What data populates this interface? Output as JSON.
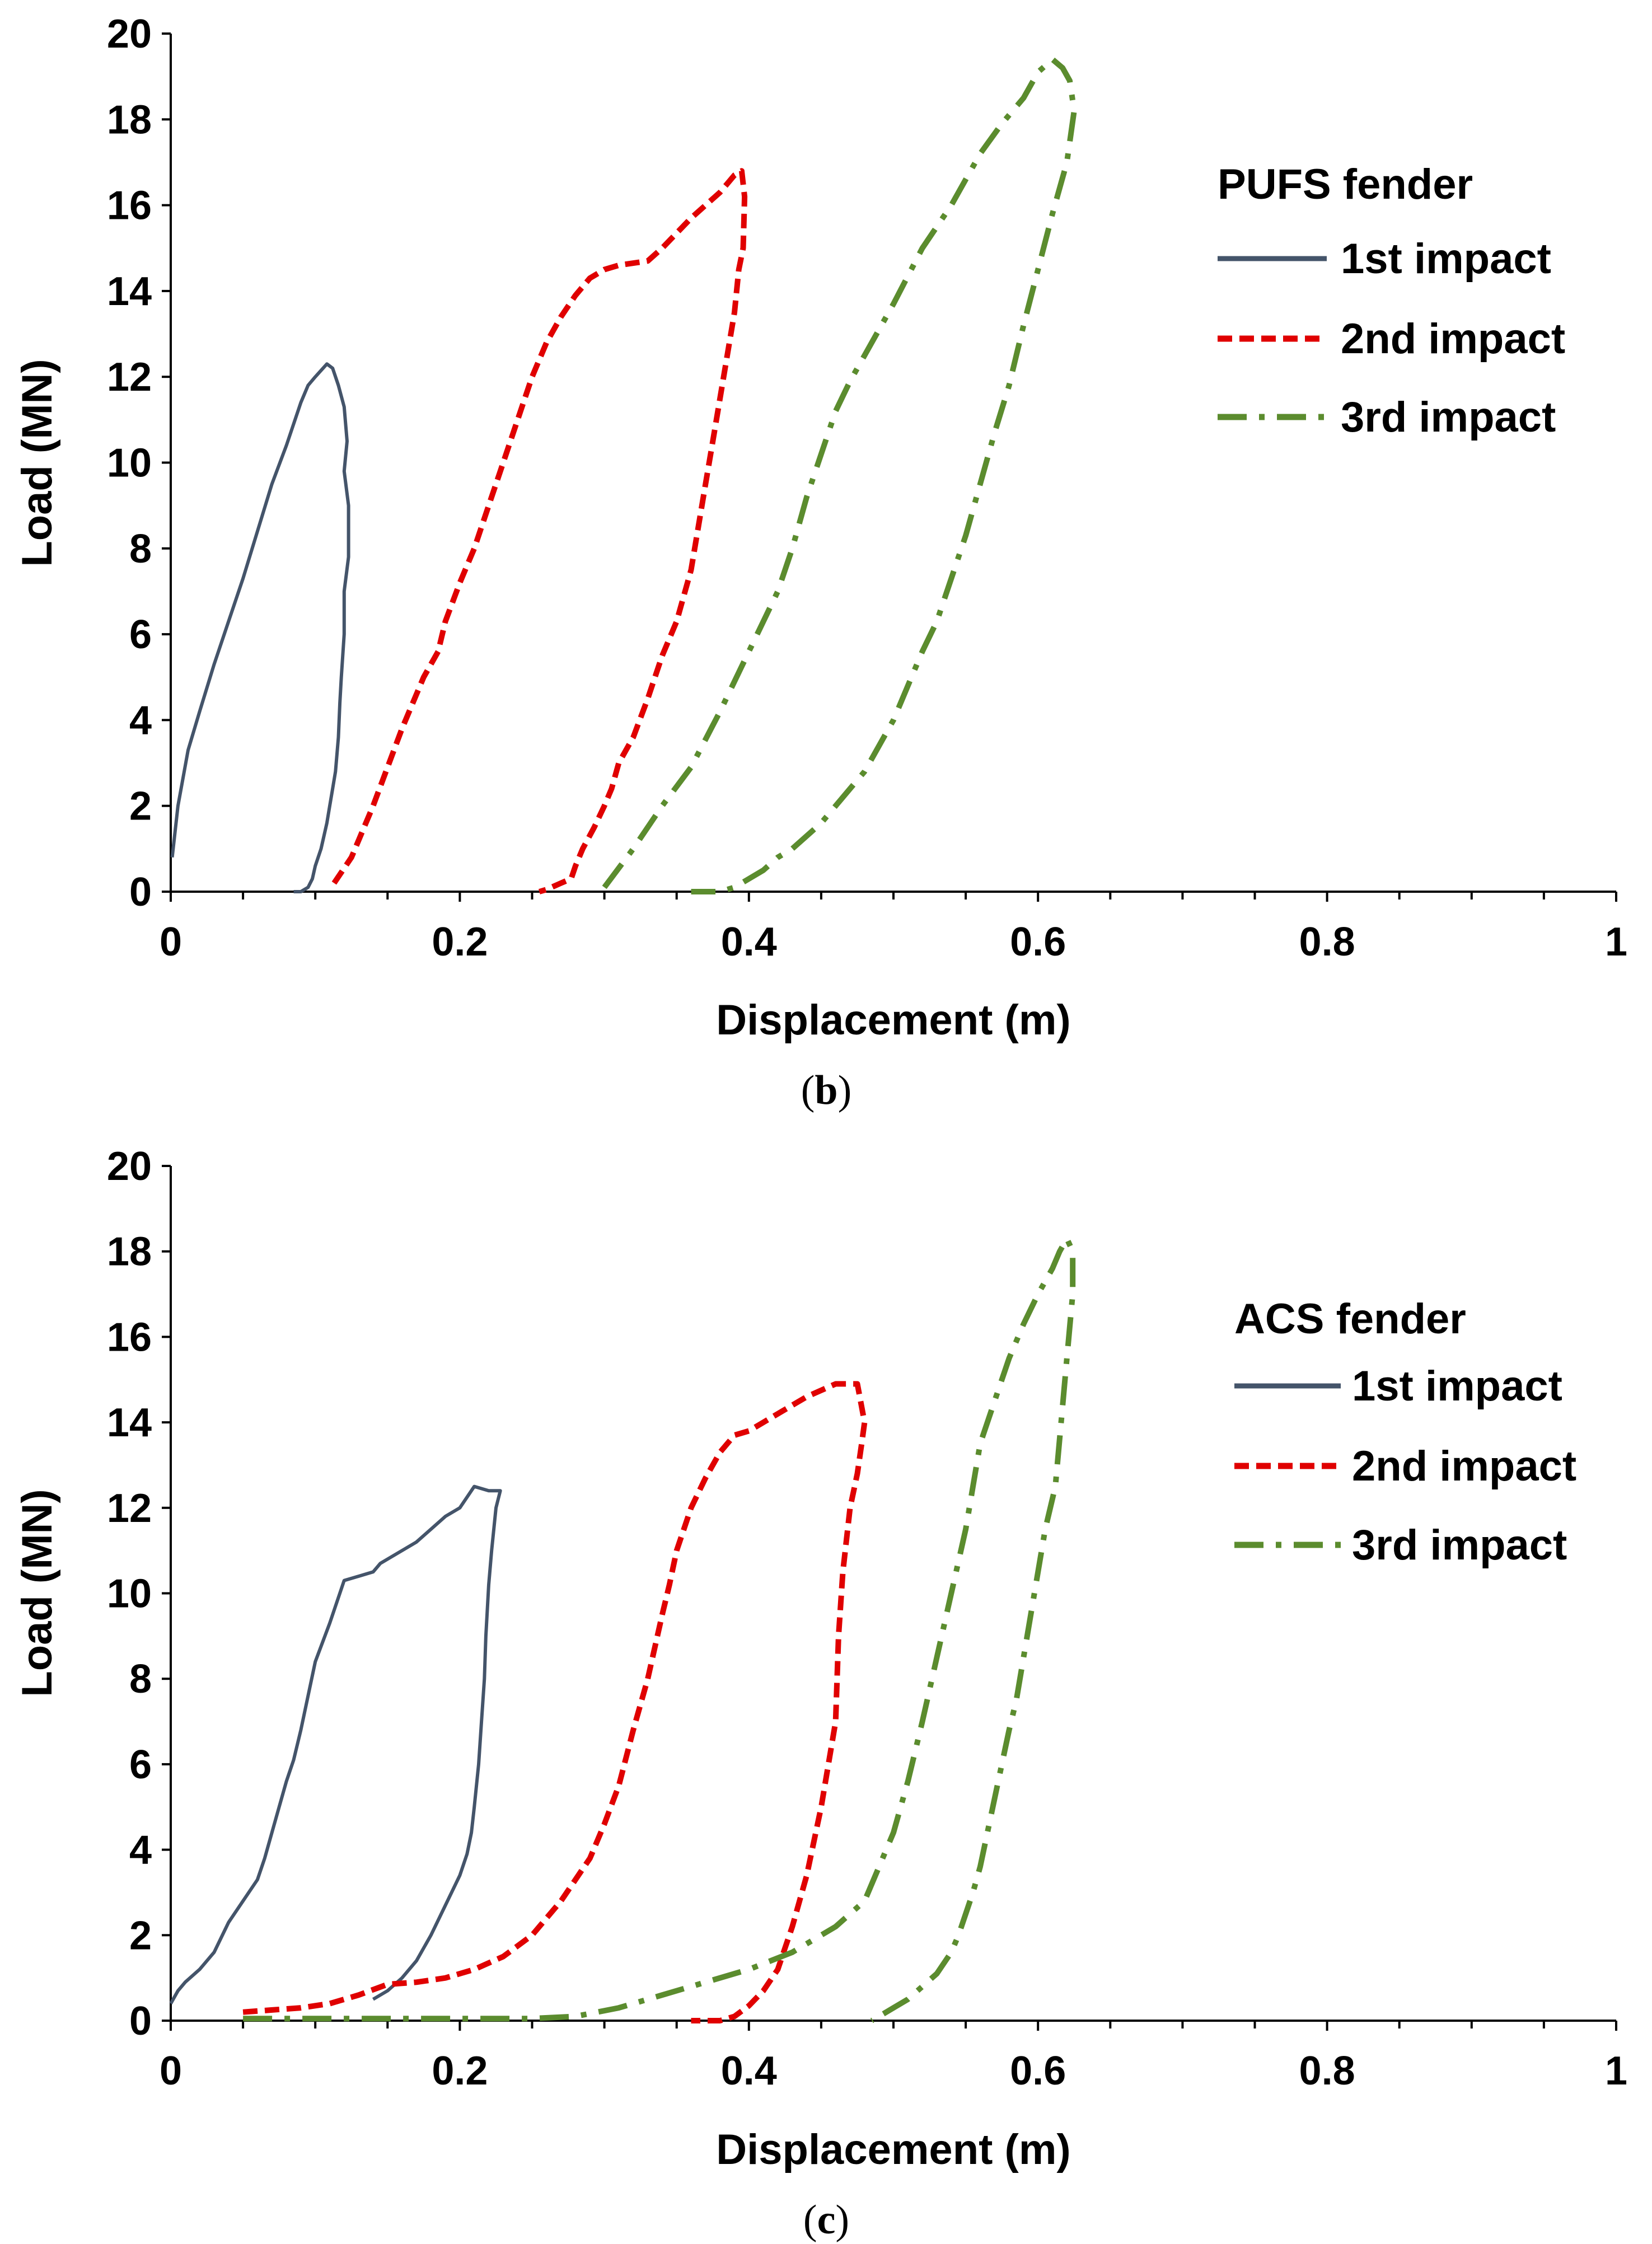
{
  "colors": {
    "first": "#44546A",
    "second": "#E00000",
    "third": "#5B8C2E",
    "axis": "#000000"
  },
  "chart_data": [
    {
      "type": "line",
      "panel": "b",
      "caption_open": "(",
      "caption_letter": "b",
      "caption_close": ")",
      "xlabel": "Displacement (m)",
      "ylabel": "Load (MN)",
      "xlim": [
        0,
        1
      ],
      "ylim": [
        0,
        20
      ],
      "xticks": [
        0,
        0.2,
        0.4,
        0.6,
        0.8,
        1
      ],
      "xtick_labels": [
        "0",
        "0.2",
        "0.4",
        "0.6",
        "0.8",
        "1"
      ],
      "yticks": [
        0,
        2,
        4,
        6,
        8,
        10,
        12,
        14,
        16,
        18,
        20
      ],
      "ytick_labels": [
        "0",
        "2",
        "4",
        "6",
        "8",
        "10",
        "12",
        "14",
        "16",
        "18",
        "20"
      ],
      "legend_title": "PUFS fender",
      "legend_position": "top-right",
      "series": [
        {
          "name": "1st impact",
          "style": "solid",
          "color": "#44546A",
          "x": [
            0.001,
            0.005,
            0.012,
            0.02,
            0.03,
            0.04,
            0.05,
            0.06,
            0.07,
            0.08,
            0.09,
            0.095,
            0.1,
            0.108,
            0.112,
            0.116,
            0.12,
            0.122,
            0.12,
            0.123,
            0.123,
            0.12,
            0.12,
            0.118,
            0.117,
            0.116,
            0.114,
            0.112,
            0.11,
            0.108,
            0.104,
            0.1,
            0.098,
            0.095,
            0.09,
            0.085
          ],
          "y": [
            0.8,
            2.0,
            3.3,
            4.2,
            5.3,
            6.3,
            7.3,
            8.4,
            9.5,
            10.4,
            11.4,
            11.8,
            12.0,
            12.3,
            12.2,
            11.8,
            11.3,
            10.5,
            9.8,
            9.0,
            7.8,
            7.0,
            6.0,
            5.0,
            4.4,
            3.6,
            2.8,
            2.4,
            2.0,
            1.6,
            1.0,
            0.6,
            0.3,
            0.1,
            0.0,
            0.0
          ]
        },
        {
          "name": "2nd impact",
          "style": "dashed",
          "color": "#E00000",
          "x": [
            0.113,
            0.125,
            0.14,
            0.16,
            0.175,
            0.185,
            0.19,
            0.2,
            0.21,
            0.22,
            0.23,
            0.24,
            0.25,
            0.26,
            0.27,
            0.28,
            0.29,
            0.3,
            0.31,
            0.33,
            0.34,
            0.36,
            0.38,
            0.39,
            0.395,
            0.397,
            0.396,
            0.393,
            0.39,
            0.385,
            0.38,
            0.375,
            0.37,
            0.365,
            0.36,
            0.35,
            0.34,
            0.33,
            0.32,
            0.31,
            0.305,
            0.3,
            0.293,
            0.285,
            0.28,
            0.277,
            0.27,
            0.26,
            0.255
          ],
          "y": [
            0.2,
            0.8,
            2.0,
            3.8,
            5.0,
            5.6,
            6.3,
            7.2,
            8.0,
            9.0,
            10.0,
            11.0,
            12.0,
            12.8,
            13.4,
            13.9,
            14.3,
            14.5,
            14.6,
            14.7,
            15.0,
            15.7,
            16.3,
            16.7,
            16.8,
            16.2,
            15.0,
            14.5,
            13.5,
            12.5,
            11.5,
            10.5,
            9.5,
            8.5,
            7.5,
            6.3,
            5.5,
            4.5,
            3.6,
            3.0,
            2.4,
            2.0,
            1.5,
            1.0,
            0.6,
            0.3,
            0.2,
            0.05,
            0.0
          ]
        },
        {
          "name": "3rd impact",
          "style": "dashdot",
          "color": "#5B8C2E",
          "x": [
            0.3,
            0.32,
            0.34,
            0.36,
            0.38,
            0.4,
            0.42,
            0.43,
            0.44,
            0.45,
            0.46,
            0.47,
            0.48,
            0.5,
            0.52,
            0.54,
            0.56,
            0.575,
            0.59,
            0.6,
            0.61,
            0.617,
            0.622,
            0.625,
            0.62,
            0.61,
            0.6,
            0.59,
            0.58,
            0.57,
            0.56,
            0.55,
            0.54,
            0.53,
            0.52,
            0.51,
            0.5,
            0.49,
            0.48,
            0.47,
            0.46,
            0.45,
            0.44,
            0.43,
            0.42,
            0.41,
            0.4,
            0.39,
            0.38,
            0.37,
            0.36
          ],
          "y": [
            0.1,
            1.0,
            2.0,
            2.9,
            4.2,
            5.6,
            7.0,
            8.0,
            9.2,
            10.2,
            11.2,
            11.9,
            12.5,
            13.7,
            15.0,
            16.0,
            17.2,
            17.9,
            18.5,
            19.1,
            19.4,
            19.2,
            18.9,
            18.2,
            17.0,
            15.8,
            14.5,
            13.2,
            11.8,
            10.7,
            9.5,
            8.3,
            7.3,
            6.3,
            5.6,
            4.8,
            4.0,
            3.4,
            2.8,
            2.4,
            2.0,
            1.6,
            1.3,
            1.0,
            0.8,
            0.5,
            0.3,
            0.1,
            0.0,
            0.0,
            0.0
          ]
        }
      ]
    },
    {
      "type": "line",
      "panel": "c",
      "caption_open": "(",
      "caption_letter": "c",
      "caption_close": ")",
      "xlabel": "Displacement (m)",
      "ylabel": "Load (MN)",
      "xlim": [
        0,
        1
      ],
      "ylim": [
        0,
        20
      ],
      "xticks": [
        0,
        0.2,
        0.4,
        0.6,
        0.8,
        1
      ],
      "xtick_labels": [
        "0",
        "0.2",
        "0.4",
        "0.6",
        "0.8",
        "1"
      ],
      "yticks": [
        0,
        2,
        4,
        6,
        8,
        10,
        12,
        14,
        16,
        18,
        20
      ],
      "ytick_labels": [
        "0",
        "2",
        "4",
        "6",
        "8",
        "10",
        "12",
        "14",
        "16",
        "18",
        "20"
      ],
      "legend_title": "ACS fender",
      "legend_position": "top-right",
      "series": [
        {
          "name": "1st impact",
          "style": "solid",
          "color": "#44546A",
          "x": [
            0.0,
            0.005,
            0.01,
            0.02,
            0.03,
            0.04,
            0.05,
            0.06,
            0.065,
            0.07,
            0.075,
            0.08,
            0.085,
            0.09,
            0.095,
            0.1,
            0.11,
            0.12,
            0.13,
            0.14,
            0.145,
            0.15,
            0.16,
            0.17,
            0.18,
            0.19,
            0.2,
            0.21,
            0.22,
            0.228,
            0.225,
            0.222,
            0.22,
            0.218,
            0.217,
            0.215,
            0.213,
            0.21,
            0.208,
            0.205,
            0.2,
            0.19,
            0.18,
            0.17,
            0.16,
            0.15,
            0.14
          ],
          "y": [
            0.4,
            0.7,
            0.9,
            1.2,
            1.6,
            2.3,
            2.8,
            3.3,
            3.8,
            4.4,
            5.0,
            5.6,
            6.1,
            6.8,
            7.6,
            8.4,
            9.3,
            10.3,
            10.4,
            10.5,
            10.7,
            10.8,
            11.0,
            11.2,
            11.5,
            11.8,
            12.0,
            12.5,
            12.4,
            12.4,
            12.0,
            11.0,
            10.2,
            9.0,
            8.0,
            7.0,
            6.0,
            5.0,
            4.4,
            3.9,
            3.4,
            2.7,
            2.0,
            1.4,
            1.0,
            0.7,
            0.5
          ]
        },
        {
          "name": "2nd impact",
          "style": "dashed",
          "color": "#E00000",
          "x": [
            0.05,
            0.07,
            0.09,
            0.11,
            0.13,
            0.15,
            0.17,
            0.19,
            0.21,
            0.23,
            0.25,
            0.27,
            0.29,
            0.3,
            0.31,
            0.32,
            0.33,
            0.34,
            0.345,
            0.35,
            0.36,
            0.37,
            0.38,
            0.39,
            0.4,
            0.42,
            0.44,
            0.46,
            0.475,
            0.48,
            0.478,
            0.475,
            0.47,
            0.465,
            0.462,
            0.46,
            0.455,
            0.45,
            0.445,
            0.44,
            0.435,
            0.43,
            0.425,
            0.42,
            0.41,
            0.4,
            0.39,
            0.38,
            0.37,
            0.36
          ],
          "y": [
            0.2,
            0.25,
            0.3,
            0.4,
            0.6,
            0.85,
            0.9,
            1.0,
            1.2,
            1.5,
            2.0,
            2.8,
            3.8,
            4.6,
            5.5,
            6.8,
            8.0,
            9.5,
            10.2,
            11.0,
            12.0,
            12.7,
            13.3,
            13.7,
            13.8,
            14.2,
            14.6,
            14.9,
            14.9,
            14.0,
            13.5,
            12.8,
            12.0,
            10.5,
            9.0,
            7.0,
            6.0,
            5.0,
            4.2,
            3.4,
            2.8,
            2.2,
            1.7,
            1.2,
            0.7,
            0.35,
            0.1,
            0.0,
            0.0,
            0.0
          ]
        },
        {
          "name": "3rd impact",
          "style": "dashdot",
          "color": "#5B8C2E",
          "x": [
            0.05,
            0.1,
            0.15,
            0.2,
            0.25,
            0.28,
            0.31,
            0.34,
            0.37,
            0.4,
            0.43,
            0.46,
            0.48,
            0.5,
            0.51,
            0.52,
            0.53,
            0.54,
            0.55,
            0.555,
            0.56,
            0.57,
            0.58,
            0.59,
            0.6,
            0.61,
            0.615,
            0.62,
            0.624,
            0.624,
            0.62,
            0.616,
            0.612,
            0.605,
            0.6,
            0.595,
            0.59,
            0.585,
            0.58,
            0.575,
            0.57,
            0.565,
            0.56,
            0.555,
            0.55,
            0.545,
            0.54,
            0.53,
            0.52,
            0.51,
            0.5,
            0.49,
            0.485
          ],
          "y": [
            0.05,
            0.05,
            0.05,
            0.05,
            0.05,
            0.1,
            0.3,
            0.6,
            0.9,
            1.2,
            1.6,
            2.2,
            2.8,
            4.4,
            5.6,
            7.0,
            8.5,
            10.0,
            11.5,
            12.5,
            13.5,
            14.5,
            15.5,
            16.3,
            17.0,
            17.6,
            18.0,
            18.3,
            18.0,
            17.0,
            15.5,
            14.0,
            12.5,
            11.5,
            10.5,
            9.5,
            8.5,
            7.5,
            6.8,
            6.0,
            5.2,
            4.4,
            3.6,
            3.0,
            2.5,
            2.0,
            1.6,
            1.1,
            0.8,
            0.5,
            0.3,
            0.1,
            0.0
          ]
        }
      ]
    }
  ]
}
